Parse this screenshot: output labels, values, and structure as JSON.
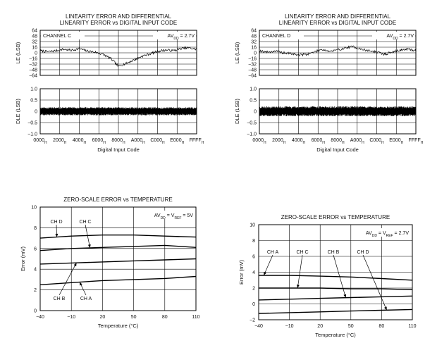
{
  "chart_data": [
    {
      "id": "le_c",
      "type": "line",
      "title_lines": [
        "LINEARITY ERROR AND DIFFERENTIAL",
        "LINEARITY ERROR vs DIGITAL INPUT CODE"
      ],
      "xlabel": "",
      "ylabel": "LE (LSB)",
      "ylim": [
        -64,
        64
      ],
      "y_ticks": [
        "64",
        "48",
        "32",
        "16",
        "0",
        "−16",
        "−32",
        "−48",
        "−64"
      ],
      "x_ticks": [],
      "grid": true,
      "channel_label": "CHANNEL C",
      "supply_label": "AV_DD = 2.7V",
      "series": [
        {
          "name": "LE",
          "x": [
            0,
            0.05,
            0.1,
            0.15,
            0.2,
            0.25,
            0.3,
            0.35,
            0.4,
            0.45,
            0.5,
            0.55,
            0.6,
            0.65,
            0.7,
            0.75,
            0.8,
            0.85,
            0.9,
            0.95,
            1.0
          ],
          "y": [
            6,
            3,
            6,
            10,
            7,
            12,
            5,
            2,
            -4,
            -16,
            -38,
            -30,
            -20,
            -10,
            -3,
            4,
            8,
            6,
            12,
            14,
            10
          ]
        }
      ]
    },
    {
      "id": "dle_c",
      "type": "line",
      "title_lines": [],
      "xlabel": "Digital Input Code",
      "ylabel": "DLE (LSB)",
      "ylim": [
        -1.0,
        1.0
      ],
      "y_ticks": [
        "1.0",
        "0.5",
        "0",
        "−0.5",
        "−1.0"
      ],
      "x_ticks": [
        "0000H",
        "2000H",
        "4000H",
        "6000H",
        "8000H",
        "A000H",
        "C000H",
        "E000H",
        "FFFFH"
      ],
      "grid": true,
      "series": [
        {
          "name": "DLE",
          "band": [
            -0.18,
            0.18
          ]
        }
      ]
    },
    {
      "id": "le_d",
      "type": "line",
      "title_lines": [
        "LINEARITY ERROR AND DIFFERENTIAL",
        "LINEARITY ERROR vs DIGITAL INPUT CODE"
      ],
      "xlabel": "",
      "ylabel": "LE (LSB)",
      "ylim": [
        -64,
        64
      ],
      "y_ticks": [
        "64",
        "48",
        "32",
        "16",
        "0",
        "−16",
        "−32",
        "−48",
        "−64"
      ],
      "x_ticks": [],
      "grid": true,
      "channel_label": "CHANNEL D",
      "supply_label": "AV_DD = 2.7V",
      "series": [
        {
          "name": "LE",
          "x": [
            0,
            0.05,
            0.1,
            0.15,
            0.2,
            0.25,
            0.3,
            0.35,
            0.4,
            0.45,
            0.5,
            0.55,
            0.6,
            0.65,
            0.7,
            0.75,
            0.8,
            0.85,
            0.9,
            0.95,
            1.0
          ],
          "y": [
            6,
            2,
            5,
            0,
            -2,
            -6,
            -4,
            2,
            10,
            4,
            8,
            14,
            18,
            10,
            6,
            2,
            -4,
            2,
            8,
            10,
            6
          ]
        }
      ]
    },
    {
      "id": "dle_d",
      "type": "line",
      "title_lines": [],
      "xlabel": "Digital Input Code",
      "ylabel": "DLE (LSB)",
      "ylim": [
        -1.0,
        1.0
      ],
      "y_ticks": [
        "1.0",
        "0.5",
        "0",
        "−0.5",
        "−1.0"
      ],
      "x_ticks": [
        "0000H",
        "2000H",
        "4000H",
        "6000H",
        "8000H",
        "A000H",
        "C000H",
        "E000H",
        "FFFFH"
      ],
      "grid": true,
      "series": [
        {
          "name": "DLE",
          "band": [
            -0.22,
            0.22
          ]
        }
      ]
    },
    {
      "id": "zse_5v",
      "type": "line",
      "title_lines": [
        "ZERO-SCALE ERROR vs TEMPERATURE"
      ],
      "xlabel": "Temperature (°C)",
      "ylabel": "Error (mV)",
      "xlim": [
        -40,
        110
      ],
      "ylim": [
        0,
        10
      ],
      "x_ticks": [
        "−40",
        "−10",
        "20",
        "50",
        "80",
        "110"
      ],
      "y_ticks": [
        "10",
        "8",
        "6",
        "4",
        "2",
        "0"
      ],
      "grid": true,
      "supply_label": "AV_DD = V_REF = 5V",
      "series": [
        {
          "name": "CH D",
          "x": [
            -40,
            -10,
            20,
            50,
            80,
            110
          ],
          "y": [
            7.0,
            7.2,
            7.3,
            7.3,
            7.2,
            7.1
          ]
        },
        {
          "name": "CH C",
          "x": [
            -40,
            -10,
            20,
            50,
            80,
            110
          ],
          "y": [
            5.8,
            6.0,
            6.1,
            6.2,
            6.3,
            6.1
          ]
        },
        {
          "name": "CH B",
          "x": [
            -40,
            -10,
            20,
            50,
            80,
            110
          ],
          "y": [
            4.5,
            4.6,
            4.7,
            4.8,
            4.9,
            5.0
          ]
        },
        {
          "name": "CH A",
          "x": [
            -40,
            -10,
            20,
            50,
            80,
            110
          ],
          "y": [
            2.5,
            2.7,
            2.9,
            3.0,
            3.1,
            3.3
          ]
        }
      ]
    },
    {
      "id": "zse_27v",
      "type": "line",
      "title_lines": [
        "ZERO-SCALE ERROR vs TEMPERATURE"
      ],
      "xlabel": "Temperature (°C)",
      "ylabel": "Error (mV)",
      "xlim": [
        -40,
        110
      ],
      "ylim": [
        -2,
        10
      ],
      "x_ticks": [
        "−40",
        "−10",
        "20",
        "50",
        "80",
        "110"
      ],
      "y_ticks": [
        "10",
        "8",
        "6",
        "4",
        "2",
        "0",
        "−2"
      ],
      "grid": true,
      "supply_label": "AV_DD = V_REF = 2.7V",
      "series": [
        {
          "name": "CH A",
          "x": [
            -40,
            -10,
            20,
            50,
            80,
            110
          ],
          "y": [
            3.6,
            3.6,
            3.5,
            3.4,
            3.2,
            3.0
          ]
        },
        {
          "name": "CH C",
          "x": [
            -40,
            -10,
            20,
            50,
            80,
            110
          ],
          "y": [
            2.0,
            2.0,
            2.0,
            1.9,
            1.9,
            1.8
          ]
        },
        {
          "name": "CH B",
          "x": [
            -40,
            -10,
            20,
            50,
            80,
            110
          ],
          "y": [
            0.5,
            0.6,
            0.7,
            0.8,
            0.9,
            1.0
          ]
        },
        {
          "name": "CH D",
          "x": [
            -40,
            -10,
            20,
            50,
            80,
            110
          ],
          "y": [
            -1.2,
            -1.1,
            -1.0,
            -0.9,
            -0.8,
            -0.7
          ]
        }
      ]
    }
  ]
}
